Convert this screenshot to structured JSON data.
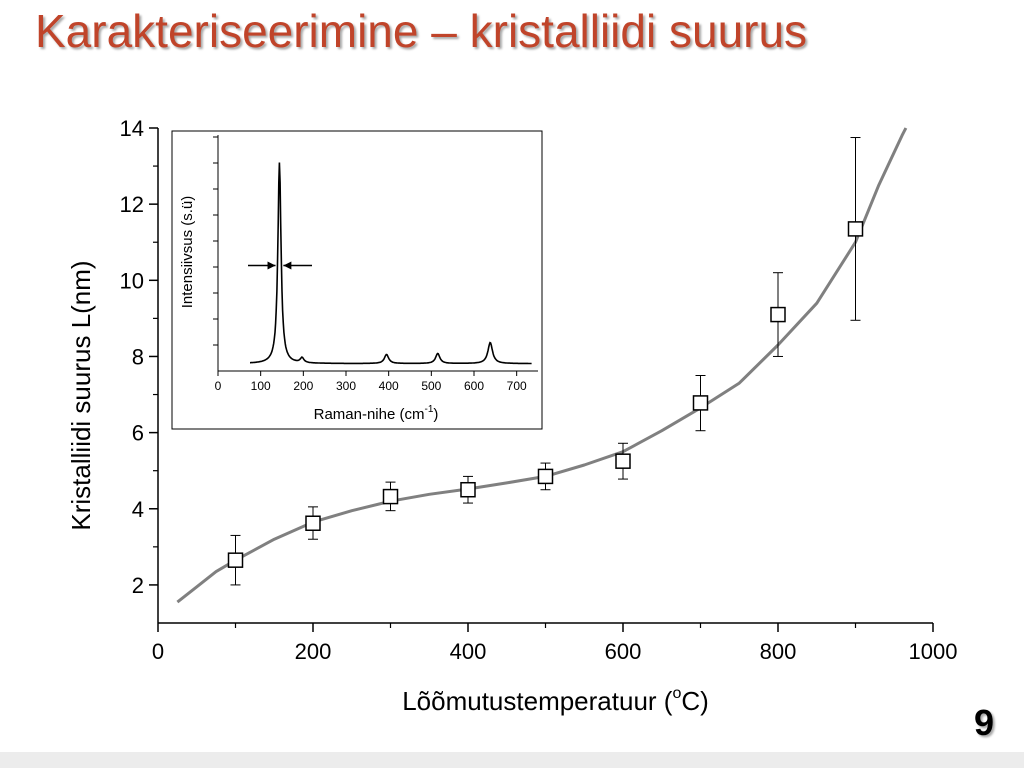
{
  "slide": {
    "title": "Karakteriseerimine – kristalliidi suurus",
    "page_number": "9"
  },
  "colors": {
    "title": "#c0442a",
    "fit_line": "#808080",
    "markers": "#000000",
    "inset_line": "#000000"
  },
  "chart_data": [
    {
      "type": "scatter",
      "xlabel": "Lõõmutustemperatuur (",
      "xlabel_sup": "o",
      "xlabel_tail": "C)",
      "ylabel": "Kristalliidi suurus L(nm)",
      "xlim": [
        0,
        1000
      ],
      "ylim": [
        1,
        14
      ],
      "x_ticks": [
        0,
        200,
        400,
        600,
        800,
        1000
      ],
      "y_ticks": [
        2,
        4,
        6,
        8,
        10,
        12,
        14
      ],
      "x_tick_labels": [
        "0",
        "200",
        "400",
        "600",
        "800",
        "1000"
      ],
      "y_tick_labels": [
        "2",
        "4",
        "6",
        "8",
        "10",
        "12",
        "14"
      ],
      "marker": "open-square",
      "points": [
        {
          "x": 100,
          "y": 2.65,
          "err_low": 2.0,
          "err_high": 3.3
        },
        {
          "x": 200,
          "y": 3.62,
          "err_low": 3.2,
          "err_high": 4.05
        },
        {
          "x": 300,
          "y": 4.32,
          "err_low": 3.95,
          "err_high": 4.7
        },
        {
          "x": 400,
          "y": 4.5,
          "err_low": 4.15,
          "err_high": 4.85
        },
        {
          "x": 500,
          "y": 4.85,
          "err_low": 4.5,
          "err_high": 5.2
        },
        {
          "x": 600,
          "y": 5.25,
          "err_low": 4.78,
          "err_high": 5.72
        },
        {
          "x": 700,
          "y": 6.78,
          "err_low": 6.05,
          "err_high": 7.5
        },
        {
          "x": 800,
          "y": 9.1,
          "err_low": 8.0,
          "err_high": 10.2
        },
        {
          "x": 900,
          "y": 11.35,
          "err_low": 8.95,
          "err_high": 13.75
        }
      ],
      "fit_curve": {
        "x": [
          25,
          50,
          75,
          100,
          150,
          200,
          250,
          300,
          350,
          400,
          450,
          500,
          550,
          600,
          650,
          700,
          750,
          800,
          850,
          900,
          930,
          960,
          965
        ],
        "y": [
          1.55,
          1.95,
          2.35,
          2.65,
          3.2,
          3.65,
          3.95,
          4.2,
          4.38,
          4.52,
          4.68,
          4.85,
          5.15,
          5.5,
          6.05,
          6.65,
          7.3,
          8.3,
          9.4,
          11.0,
          12.5,
          13.8,
          14.0
        ]
      }
    },
    {
      "type": "line",
      "name": "inset-raman-spectrum",
      "xlabel": "Raman-nihe (cm",
      "xlabel_sup": "-1",
      "xlabel_tail": ")",
      "ylabel": "Intensiivsus (s.ü)",
      "xlim": [
        0,
        750
      ],
      "x_ticks": [
        0,
        100,
        200,
        300,
        400,
        500,
        600,
        700
      ],
      "x_tick_labels": [
        "0",
        "100",
        "200",
        "300",
        "400",
        "500",
        "600",
        "700"
      ],
      "y_scale": "relative",
      "peaks": [
        {
          "center": 144,
          "height": 1.0,
          "width": 9
        },
        {
          "center": 197,
          "height": 0.025,
          "width": 10
        },
        {
          "center": 395,
          "height": 0.045,
          "width": 12
        },
        {
          "center": 515,
          "height": 0.05,
          "width": 12
        },
        {
          "center": 638,
          "height": 0.105,
          "width": 13
        }
      ],
      "baseline": 0.012,
      "fwhm_marker": {
        "center": 144,
        "level": 0.5
      }
    }
  ]
}
